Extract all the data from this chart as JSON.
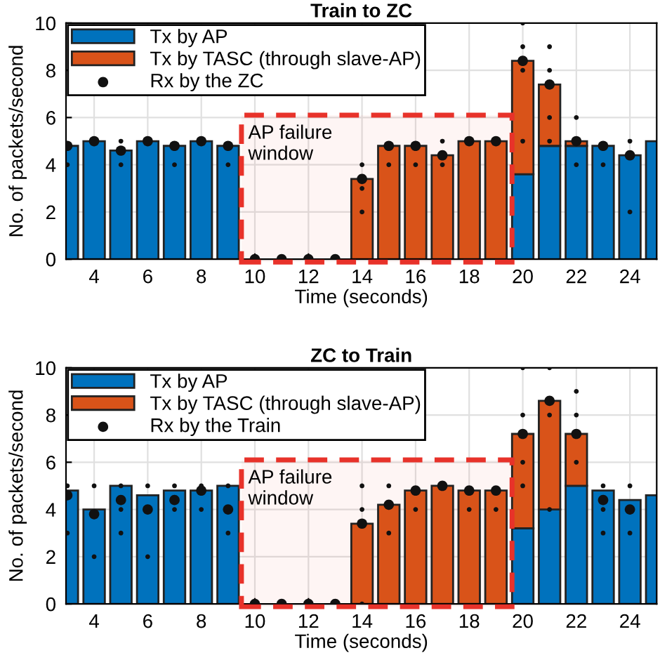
{
  "chart_data": [
    {
      "type": "bar",
      "title": "Train to ZC",
      "xlabel": "Time (seconds)",
      "ylabel": "No. of packets/second",
      "stacked": true,
      "grid": true,
      "legend": "top left",
      "x": [
        3,
        4,
        5,
        6,
        7,
        8,
        9,
        10,
        11,
        12,
        13,
        14,
        15,
        16,
        17,
        18,
        19,
        20,
        21,
        22,
        23,
        24,
        25
      ],
      "xlim": [
        2.95,
        25
      ],
      "xticks": [
        4,
        6,
        8,
        10,
        12,
        14,
        16,
        18,
        20,
        22,
        24
      ],
      "ylim": [
        0,
        10
      ],
      "yticks": [
        0,
        2,
        4,
        6,
        8,
        10
      ],
      "bands": [
        {
          "axis": "x",
          "from": 9.5,
          "to": 19.6,
          "label": "AP failure window",
          "color": "#e8322a"
        }
      ],
      "series": [
        {
          "name": "Tx by AP",
          "color": "#0072bd",
          "values": [
            4.8,
            5,
            4.6,
            5,
            4.8,
            5,
            4.8,
            null,
            null,
            null,
            null,
            null,
            null,
            null,
            null,
            null,
            null,
            3.6,
            4.8,
            4.8,
            4.8,
            4.4,
            5
          ]
        },
        {
          "name": "Tx by TASC (through slave-AP)",
          "color": "#d95319",
          "values": [
            null,
            null,
            null,
            null,
            null,
            null,
            null,
            null,
            null,
            null,
            null,
            3.4,
            4.8,
            4.8,
            4.4,
            5,
            5,
            4.8,
            2.6,
            0.2,
            null,
            null,
            null
          ]
        },
        {
          "name": "Rx by the ZC",
          "type": "scatter",
          "marker": "circle",
          "color": "#111111",
          "x": [
            3,
            4,
            5,
            6,
            7,
            8,
            9,
            10,
            11,
            12,
            13,
            14,
            15,
            16,
            17,
            18,
            19,
            20,
            21,
            22,
            23,
            24
          ],
          "values": [
            4.8,
            5,
            4.6,
            5,
            4.8,
            5,
            4.8,
            0,
            0,
            0,
            0,
            3.4,
            4.8,
            4.8,
            4.4,
            5,
            5,
            8.4,
            7.4,
            5,
            4.8,
            4.4
          ]
        },
        {
          "type": "scatter",
          "marker": "circle",
          "color": "#111111",
          "x": [
            3,
            5,
            5,
            7,
            9,
            14,
            14,
            14,
            15,
            16,
            17,
            17,
            20,
            20,
            20,
            20,
            21,
            21,
            21,
            21,
            22,
            22,
            23,
            24,
            24
          ],
          "values": [
            4,
            5,
            4,
            4,
            4,
            4,
            3,
            2,
            4,
            4,
            5,
            4,
            10,
            9,
            8,
            5,
            9,
            8,
            6,
            5,
            6,
            4,
            4,
            5,
            2
          ]
        }
      ]
    },
    {
      "type": "bar",
      "title": "ZC to Train",
      "xlabel": "Time (seconds)",
      "ylabel": "No. of packets/second",
      "stacked": true,
      "grid": true,
      "legend": "top left",
      "x": [
        3,
        4,
        5,
        6,
        7,
        8,
        9,
        10,
        11,
        12,
        13,
        14,
        15,
        16,
        17,
        18,
        19,
        20,
        21,
        22,
        23,
        24,
        25
      ],
      "xlim": [
        2.95,
        25
      ],
      "xticks": [
        4,
        6,
        8,
        10,
        12,
        14,
        16,
        18,
        20,
        22,
        24
      ],
      "ylim": [
        0,
        10
      ],
      "yticks": [
        0,
        2,
        4,
        6,
        8,
        10
      ],
      "bands": [
        {
          "axis": "x",
          "from": 9.5,
          "to": 19.6,
          "label": "AP failure window",
          "color": "#e8322a"
        }
      ],
      "series": [
        {
          "name": "Tx by AP",
          "color": "#0072bd",
          "values": [
            4.8,
            4,
            5,
            4.6,
            4.8,
            4.8,
            5,
            null,
            null,
            null,
            null,
            null,
            null,
            null,
            null,
            null,
            null,
            3.2,
            4,
            5,
            4.8,
            4.4,
            4.6
          ]
        },
        {
          "name": "Tx by TASC (through slave-AP)",
          "color": "#d95319",
          "values": [
            null,
            null,
            null,
            null,
            null,
            null,
            null,
            null,
            null,
            null,
            null,
            3.4,
            4.2,
            4.8,
            5,
            4.8,
            4.8,
            4,
            4.6,
            2.2,
            null,
            null,
            null
          ]
        },
        {
          "name": "Rx by the Train",
          "type": "scatter",
          "marker": "circle",
          "color": "#111111",
          "x": [
            3,
            4,
            5,
            6,
            7,
            8,
            9,
            10,
            11,
            12,
            13,
            14,
            15,
            16,
            17,
            18,
            19,
            20,
            21,
            22,
            23,
            24
          ],
          "values": [
            4.6,
            3.8,
            4.4,
            4,
            4.4,
            4.8,
            4,
            0,
            0,
            0,
            0,
            3.4,
            4.2,
            4.8,
            5,
            4.8,
            4.8,
            7.2,
            8.6,
            7.2,
            4.4,
            4
          ]
        },
        {
          "type": "scatter",
          "marker": "circle",
          "color": "#111111",
          "x": [
            3,
            3,
            4,
            4,
            5,
            5,
            5,
            6,
            6,
            7,
            7,
            8,
            8,
            9,
            9,
            14,
            14,
            14,
            15,
            15,
            16,
            18,
            19,
            20,
            20,
            20,
            20,
            21,
            21,
            21,
            22,
            22,
            22,
            23,
            23,
            23,
            24,
            24
          ],
          "values": [
            5,
            3,
            5,
            2,
            5,
            4,
            3,
            5,
            2,
            5,
            4,
            5,
            4,
            5,
            3,
            5,
            4,
            0,
            5,
            3,
            4,
            4,
            4,
            10,
            8,
            6,
            5,
            10,
            8,
            4,
            9,
            8,
            6,
            5,
            4,
            3,
            5,
            3
          ]
        }
      ]
    }
  ]
}
